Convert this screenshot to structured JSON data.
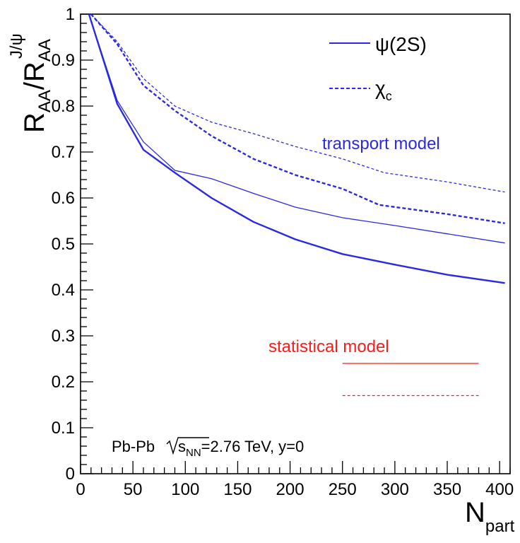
{
  "chart_data": {
    "type": "line",
    "xlabel": {
      "main": "N",
      "sub": "part"
    },
    "ylabel": {
      "main": "R",
      "sub": "AA",
      "sep": "/R",
      "sub2": "AA",
      "sup2": "J/ψ"
    },
    "xlim": [
      0,
      410
    ],
    "ylim": [
      0,
      1
    ],
    "x_ticks": [
      "0",
      "50",
      "100",
      "150",
      "200",
      "250",
      "300",
      "350",
      "400"
    ],
    "y_ticks": [
      "0",
      "0.1",
      "0.2",
      "0.3",
      "0.4",
      "0.5",
      "0.6",
      "0.7",
      "0.8",
      "0.9",
      "1"
    ],
    "grid": false,
    "legend": {
      "placement": "top-right",
      "entries": [
        {
          "label": "ψ(2S)",
          "style": "solid"
        },
        {
          "label": "χ",
          "sub": "c",
          "style": "dashed"
        }
      ]
    },
    "annotations": {
      "transport": "transport model",
      "statistical": "statistical model",
      "system": {
        "main": "Pb-Pb  ",
        "sqrt": "s",
        "sub": "NN",
        "rest": "=2.76 TeV, y=0"
      }
    },
    "colors": {
      "transport": "#2a2ae6",
      "statistical": "#ff1a1a"
    },
    "series": [
      {
        "group": "transport",
        "style": "solid",
        "weight": "thick",
        "points": [
          [
            8,
            1.0
          ],
          [
            35,
            0.805
          ],
          [
            60,
            0.705
          ],
          [
            90,
            0.655
          ],
          [
            125,
            0.6
          ],
          [
            165,
            0.548
          ],
          [
            205,
            0.51
          ],
          [
            250,
            0.478
          ],
          [
            300,
            0.455
          ],
          [
            350,
            0.433
          ],
          [
            405,
            0.415
          ]
        ]
      },
      {
        "group": "transport",
        "style": "solid",
        "weight": "thin",
        "points": [
          [
            8,
            1.0
          ],
          [
            35,
            0.812
          ],
          [
            60,
            0.722
          ],
          [
            90,
            0.66
          ],
          [
            125,
            0.642
          ],
          [
            165,
            0.61
          ],
          [
            205,
            0.58
          ],
          [
            250,
            0.557
          ],
          [
            300,
            0.54
          ],
          [
            350,
            0.522
          ],
          [
            405,
            0.502
          ]
        ]
      },
      {
        "group": "transport",
        "style": "dashed",
        "weight": "thick",
        "points": [
          [
            10,
            1.0
          ],
          [
            35,
            0.935
          ],
          [
            60,
            0.845
          ],
          [
            90,
            0.79
          ],
          [
            125,
            0.735
          ],
          [
            165,
            0.685
          ],
          [
            205,
            0.65
          ],
          [
            250,
            0.62
          ],
          [
            285,
            0.585
          ],
          [
            350,
            0.565
          ],
          [
            405,
            0.545
          ]
        ]
      },
      {
        "group": "transport",
        "style": "dashed",
        "weight": "thin",
        "points": [
          [
            10,
            1.0
          ],
          [
            35,
            0.94
          ],
          [
            60,
            0.86
          ],
          [
            90,
            0.8
          ],
          [
            125,
            0.765
          ],
          [
            165,
            0.74
          ],
          [
            205,
            0.712
          ],
          [
            250,
            0.685
          ],
          [
            290,
            0.655
          ],
          [
            350,
            0.635
          ],
          [
            405,
            0.613
          ]
        ]
      },
      {
        "group": "statistical",
        "style": "solid",
        "weight": "thin",
        "points": [
          [
            250,
            0.24
          ],
          [
            380,
            0.24
          ]
        ]
      },
      {
        "group": "statistical",
        "style": "dashed",
        "weight": "thin",
        "points": [
          [
            250,
            0.17
          ],
          [
            380,
            0.17
          ]
        ]
      }
    ]
  }
}
